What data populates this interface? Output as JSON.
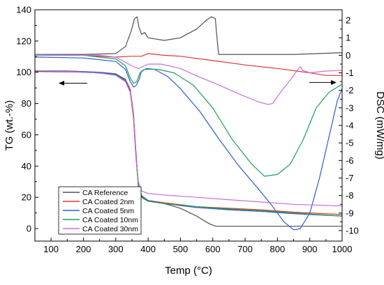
{
  "chart_data": {
    "type": "line",
    "xlabel": "Temp (°C)",
    "ylabel_left": "TG (wt.-%)",
    "ylabel_right": "DSC (mW/mg)",
    "xlim": [
      50,
      1000
    ],
    "ylim_left": [
      -8,
      140
    ],
    "ylim_right": [
      -10.6,
      2.6
    ],
    "x_ticks": [
      100,
      200,
      300,
      400,
      500,
      600,
      700,
      800,
      900,
      1000
    ],
    "y_left_ticks": [
      0,
      20,
      40,
      60,
      80,
      100,
      120,
      140
    ],
    "y_right_ticks": [
      2,
      1,
      0,
      -1,
      -2,
      -3,
      -4,
      -5,
      -6,
      -7,
      -8,
      -9,
      -10
    ],
    "grid": false,
    "legend_position": "bottom-left",
    "series": [
      {
        "name": "CA Reference",
        "color": "#505050",
        "tg": [
          [
            50,
            100.5
          ],
          [
            150,
            100.3
          ],
          [
            250,
            99.8
          ],
          [
            300,
            98.5
          ],
          [
            330,
            95
          ],
          [
            345,
            88
          ],
          [
            355,
            72
          ],
          [
            362,
            50
          ],
          [
            370,
            28
          ],
          [
            380,
            20
          ],
          [
            400,
            17.5
          ],
          [
            450,
            16
          ],
          [
            500,
            13
          ],
          [
            550,
            8
          ],
          [
            590,
            3
          ],
          [
            610,
            1.5
          ],
          [
            700,
            1.5
          ],
          [
            850,
            1.5
          ],
          [
            1000,
            1.5
          ]
        ],
        "dsc": [
          [
            50,
            0.05
          ],
          [
            200,
            0.05
          ],
          [
            300,
            0.1
          ],
          [
            330,
            0.5
          ],
          [
            348,
            1.4
          ],
          [
            358,
            2.1
          ],
          [
            366,
            2.2
          ],
          [
            372,
            1.6
          ],
          [
            380,
            1.2
          ],
          [
            390,
            1.3
          ],
          [
            400,
            1.0
          ],
          [
            450,
            0.85
          ],
          [
            500,
            1.0
          ],
          [
            550,
            1.5
          ],
          [
            580,
            2.0
          ],
          [
            595,
            2.2
          ],
          [
            608,
            2.1
          ],
          [
            612,
            1.2
          ],
          [
            618,
            0.05
          ],
          [
            700,
            0.05
          ],
          [
            850,
            0.05
          ],
          [
            1000,
            0.15
          ]
        ]
      },
      {
        "name": "CA Coated 2nm",
        "color": "#e8352b",
        "tg": [
          [
            50,
            101
          ],
          [
            150,
            100.8
          ],
          [
            250,
            100
          ],
          [
            300,
            99
          ],
          [
            330,
            95.5
          ],
          [
            345,
            89
          ],
          [
            355,
            73
          ],
          [
            362,
            50
          ],
          [
            370,
            28
          ],
          [
            380,
            21
          ],
          [
            400,
            18
          ],
          [
            450,
            16.5
          ],
          [
            550,
            14
          ],
          [
            650,
            13
          ],
          [
            750,
            12
          ],
          [
            850,
            10.5
          ],
          [
            1000,
            9
          ]
        ],
        "dsc": [
          [
            50,
            0
          ],
          [
            200,
            0
          ],
          [
            300,
            -0.1
          ],
          [
            350,
            -0.05
          ],
          [
            380,
            -0.05
          ],
          [
            400,
            0.1
          ],
          [
            450,
            0
          ],
          [
            500,
            -0.05
          ],
          [
            600,
            -0.3
          ],
          [
            700,
            -0.55
          ],
          [
            800,
            -0.75
          ],
          [
            900,
            -1.0
          ],
          [
            950,
            -1.15
          ],
          [
            1000,
            -1.15
          ]
        ]
      },
      {
        "name": "CA Coated 5nm",
        "color": "#2d5bd6",
        "tg": [
          [
            50,
            101
          ],
          [
            150,
            100.8
          ],
          [
            250,
            100
          ],
          [
            300,
            99
          ],
          [
            330,
            95
          ],
          [
            345,
            88
          ],
          [
            355,
            71
          ],
          [
            362,
            48
          ],
          [
            370,
            27
          ],
          [
            380,
            21
          ],
          [
            400,
            18
          ],
          [
            450,
            16
          ],
          [
            550,
            13.5
          ],
          [
            650,
            12
          ],
          [
            750,
            11
          ],
          [
            850,
            9.5
          ],
          [
            1000,
            8
          ]
        ],
        "dsc": [
          [
            50,
            -0.1
          ],
          [
            200,
            -0.15
          ],
          [
            300,
            -0.35
          ],
          [
            330,
            -0.8
          ],
          [
            345,
            -1.5
          ],
          [
            355,
            -1.8
          ],
          [
            362,
            -1.75
          ],
          [
            372,
            -1.4
          ],
          [
            380,
            -0.9
          ],
          [
            395,
            -0.75
          ],
          [
            420,
            -0.8
          ],
          [
            460,
            -1.2
          ],
          [
            500,
            -1.9
          ],
          [
            560,
            -3.2
          ],
          [
            620,
            -4.8
          ],
          [
            680,
            -6.3
          ],
          [
            740,
            -7.6
          ],
          [
            780,
            -8.5
          ],
          [
            820,
            -9.5
          ],
          [
            850,
            -9.95
          ],
          [
            870,
            -9.9
          ],
          [
            900,
            -9.0
          ],
          [
            930,
            -7.0
          ],
          [
            960,
            -4.6
          ],
          [
            985,
            -2.6
          ],
          [
            1000,
            -1.9
          ]
        ]
      },
      {
        "name": "CA Coated 10nm",
        "color": "#1e9e55",
        "tg": [
          [
            50,
            101
          ],
          [
            150,
            100.6
          ],
          [
            250,
            99.5
          ],
          [
            300,
            98.5
          ],
          [
            330,
            94.5
          ],
          [
            345,
            87.5
          ],
          [
            355,
            70
          ],
          [
            362,
            47
          ],
          [
            370,
            27
          ],
          [
            380,
            20.5
          ],
          [
            400,
            17.5
          ],
          [
            450,
            16
          ],
          [
            550,
            14
          ],
          [
            650,
            12.5
          ],
          [
            750,
            11.5
          ],
          [
            850,
            10
          ],
          [
            1000,
            8
          ]
        ],
        "dsc": [
          [
            50,
            0.05
          ],
          [
            200,
            0
          ],
          [
            300,
            -0.2
          ],
          [
            330,
            -0.6
          ],
          [
            345,
            -1.3
          ],
          [
            355,
            -1.6
          ],
          [
            365,
            -1.5
          ],
          [
            375,
            -1.0
          ],
          [
            390,
            -0.8
          ],
          [
            430,
            -0.8
          ],
          [
            480,
            -1.0
          ],
          [
            540,
            -1.7
          ],
          [
            600,
            -3.0
          ],
          [
            660,
            -4.8
          ],
          [
            720,
            -6.2
          ],
          [
            760,
            -6.9
          ],
          [
            800,
            -6.8
          ],
          [
            840,
            -6.2
          ],
          [
            880,
            -4.8
          ],
          [
            920,
            -3.0
          ],
          [
            960,
            -2.1
          ],
          [
            1000,
            -1.65
          ]
        ]
      },
      {
        "name": "CA Coated 30nm",
        "color": "#c86ee0",
        "tg": [
          [
            50,
            101
          ],
          [
            150,
            100.5
          ],
          [
            250,
            99.5
          ],
          [
            300,
            98
          ],
          [
            330,
            94
          ],
          [
            345,
            87
          ],
          [
            355,
            70
          ],
          [
            362,
            47
          ],
          [
            370,
            30
          ],
          [
            380,
            24
          ],
          [
            400,
            22.5
          ],
          [
            450,
            21.5
          ],
          [
            550,
            20
          ],
          [
            650,
            18.5
          ],
          [
            750,
            17
          ],
          [
            850,
            15.5
          ],
          [
            1000,
            14.5
          ]
        ],
        "dsc": [
          [
            50,
            0
          ],
          [
            250,
            0
          ],
          [
            300,
            -0.1
          ],
          [
            330,
            -0.4
          ],
          [
            350,
            -0.6
          ],
          [
            370,
            -0.75
          ],
          [
            400,
            -0.5
          ],
          [
            440,
            -0.5
          ],
          [
            500,
            -0.75
          ],
          [
            560,
            -1.25
          ],
          [
            620,
            -1.7
          ],
          [
            680,
            -2.2
          ],
          [
            740,
            -2.65
          ],
          [
            770,
            -2.8
          ],
          [
            785,
            -2.75
          ],
          [
            810,
            -2.1
          ],
          [
            840,
            -1.4
          ],
          [
            860,
            -0.9
          ],
          [
            870,
            -0.65
          ],
          [
            878,
            -0.85
          ],
          [
            900,
            -1.0
          ],
          [
            950,
            -0.9
          ],
          [
            1000,
            -0.85
          ]
        ]
      }
    ]
  }
}
